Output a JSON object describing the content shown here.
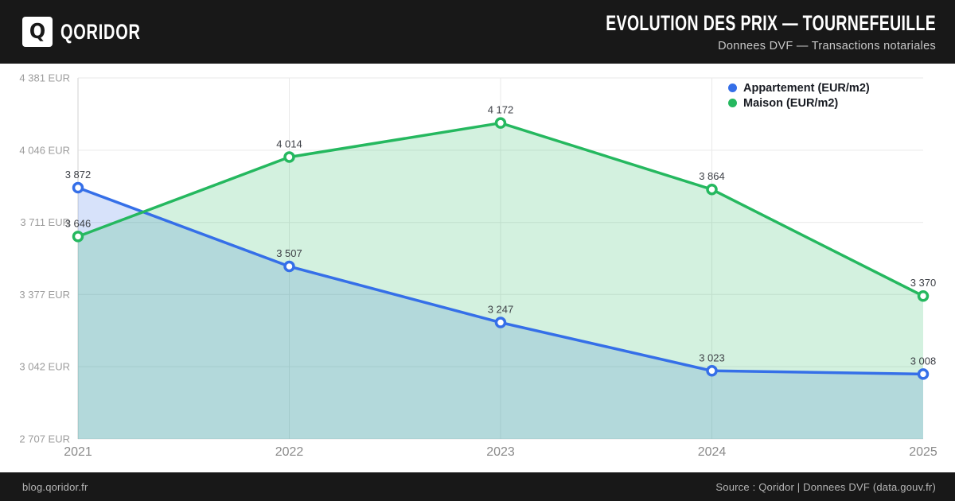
{
  "header": {
    "logo_letter": "Q",
    "brand": "QORIDOR",
    "title": "EVOLUTION DES PRIX — TOURNEFEUILLE",
    "subtitle": "Donnees DVF — Transactions notariales"
  },
  "footer": {
    "left": "blog.qoridor.fr",
    "right": "Source : Qoridor | Donnees DVF (data.gouv.fr)"
  },
  "chart_data": {
    "type": "line",
    "title": "Evolution des prix — Tournefeuille",
    "x": [
      2021,
      2022,
      2023,
      2024,
      2025
    ],
    "series": [
      {
        "name": "Appartement (EUR/m2)",
        "color": "#356fe8",
        "fill_rgba": "rgba(53,111,232,0.20)",
        "values": [
          3872,
          3507,
          3247,
          3023,
          3008
        ]
      },
      {
        "name": "Maison (EUR/m2)",
        "color": "#25b85f",
        "fill_rgba": "rgba(37,184,95,0.20)",
        "values": [
          3646,
          4014,
          4172,
          3864,
          3370
        ]
      }
    ],
    "y_ticks": [
      2707,
      3042,
      3377,
      3711,
      4046,
      4381
    ],
    "y_tick_suffix": " EUR",
    "ylim": [
      2707,
      4381
    ],
    "grid": true,
    "legend_position": "top-right",
    "colors": {
      "grid": "#e9e9e9",
      "axis": "#d9d9d9",
      "tick_text": "#9c9c9c",
      "x_tick_text": "#8a8a8a",
      "point_label": "#3e4147"
    }
  }
}
